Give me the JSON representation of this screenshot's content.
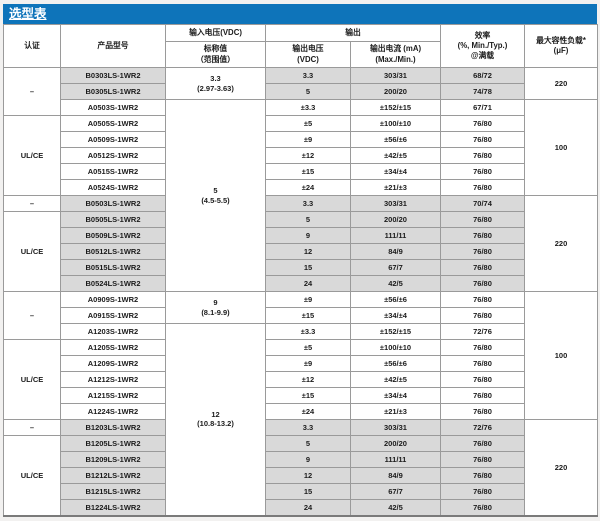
{
  "title": "选型表",
  "colors": {
    "accent_blue": "#0e74ba",
    "row_shade_gray": "#d9d9d9",
    "border_gray": "#9a9a9a",
    "title_text": "#ffffff"
  },
  "header": {
    "cert": "认证",
    "model": "产品型号",
    "input_group": "输入电压(VDC)",
    "input_sub_line1": "标称值",
    "input_sub_line2": "（范围值）",
    "output_group": "输出",
    "vout_line1": "输出电压",
    "vout_line2": "(VDC)",
    "iout_line1": "输出电流 (mA)",
    "iout_line2": "(Max./Min.)",
    "eff_line1": "效率",
    "eff_line2": "(%, Min./Typ.)",
    "eff_line3": "@满载",
    "cap_line1": "最大容性负载*",
    "cap_line2": "(μF)"
  },
  "rows": [
    {
      "model": "B0303LS-1WR2",
      "vout": "3.3",
      "iout": "303/31",
      "eff": "68/72",
      "shaded": true,
      "cert": {
        "label": "–",
        "span": 3
      },
      "input": {
        "lines": [
          "3.3",
          "(2.97-3.63)"
        ],
        "span": 2
      },
      "cap": {
        "label": "220",
        "span": 2
      }
    },
    {
      "model": "B0305LS-1WR2",
      "vout": "5",
      "iout": "200/20",
      "eff": "74/78",
      "shaded": true
    },
    {
      "model": "A0503S-1WR2",
      "vout": "±3.3",
      "iout": "±152/±15",
      "eff": "67/71",
      "shaded": false,
      "input": {
        "lines": [
          "5",
          "(4.5-5.5)"
        ],
        "span": 12
      },
      "cap": {
        "label": "100",
        "span": 6
      }
    },
    {
      "model": "A0505S-1WR2",
      "vout": "±5",
      "iout": "±100/±10",
      "eff": "76/80",
      "shaded": false,
      "cert": {
        "label": "UL/CE",
        "span": 5
      }
    },
    {
      "model": "A0509S-1WR2",
      "vout": "±9",
      "iout": "±56/±6",
      "eff": "76/80",
      "shaded": false
    },
    {
      "model": "A0512S-1WR2",
      "vout": "±12",
      "iout": "±42/±5",
      "eff": "76/80",
      "shaded": false
    },
    {
      "model": "A0515S-1WR2",
      "vout": "±15",
      "iout": "±34/±4",
      "eff": "76/80",
      "shaded": false
    },
    {
      "model": "A0524S-1WR2",
      "vout": "±24",
      "iout": "±21/±3",
      "eff": "76/80",
      "shaded": false
    },
    {
      "model": "B0503LS-1WR2",
      "vout": "3.3",
      "iout": "303/31",
      "eff": "70/74",
      "shaded": true,
      "cert": {
        "label": "–",
        "span": 1
      },
      "cap": {
        "label": "220",
        "span": 6
      }
    },
    {
      "model": "B0505LS-1WR2",
      "vout": "5",
      "iout": "200/20",
      "eff": "76/80",
      "shaded": true,
      "cert": {
        "label": "UL/CE",
        "span": 5
      }
    },
    {
      "model": "B0509LS-1WR2",
      "vout": "9",
      "iout": "111/11",
      "eff": "76/80",
      "shaded": true
    },
    {
      "model": "B0512LS-1WR2",
      "vout": "12",
      "iout": "84/9",
      "eff": "76/80",
      "shaded": true
    },
    {
      "model": "B0515LS-1WR2",
      "vout": "15",
      "iout": "67/7",
      "eff": "76/80",
      "shaded": true
    },
    {
      "model": "B0524LS-1WR2",
      "vout": "24",
      "iout": "42/5",
      "eff": "76/80",
      "shaded": true
    },
    {
      "model": "A0909S-1WR2",
      "vout": "±9",
      "iout": "±56/±6",
      "eff": "76/80",
      "shaded": false,
      "cert": {
        "label": "–",
        "span": 3
      },
      "input": {
        "lines": [
          "9",
          "(8.1-9.9)"
        ],
        "span": 2
      },
      "cap": {
        "label": "100",
        "span": 8
      }
    },
    {
      "model": "A0915S-1WR2",
      "vout": "±15",
      "iout": "±34/±4",
      "eff": "76/80",
      "shaded": false
    },
    {
      "model": "A1203S-1WR2",
      "vout": "±3.3",
      "iout": "±152/±15",
      "eff": "72/76",
      "shaded": false,
      "input": {
        "lines": [
          "12",
          "(10.8-13.2)"
        ],
        "span": 12
      }
    },
    {
      "model": "A1205S-1WR2",
      "vout": "±5",
      "iout": "±100/±10",
      "eff": "76/80",
      "shaded": false,
      "cert": {
        "label": "UL/CE",
        "span": 5
      }
    },
    {
      "model": "A1209S-1WR2",
      "vout": "±9",
      "iout": "±56/±6",
      "eff": "76/80",
      "shaded": false
    },
    {
      "model": "A1212S-1WR2",
      "vout": "±12",
      "iout": "±42/±5",
      "eff": "76/80",
      "shaded": false
    },
    {
      "model": "A1215S-1WR2",
      "vout": "±15",
      "iout": "±34/±4",
      "eff": "76/80",
      "shaded": false
    },
    {
      "model": "A1224S-1WR2",
      "vout": "±24",
      "iout": "±21/±3",
      "eff": "76/80",
      "shaded": false
    },
    {
      "model": "B1203LS-1WR2",
      "vout": "3.3",
      "iout": "303/31",
      "eff": "72/76",
      "shaded": true,
      "cert": {
        "label": "–",
        "span": 1
      },
      "cap": {
        "label": "220",
        "span": 6
      }
    },
    {
      "model": "B1205LS-1WR2",
      "vout": "5",
      "iout": "200/20",
      "eff": "76/80",
      "shaded": true,
      "cert": {
        "label": "UL/CE",
        "span": 5
      }
    },
    {
      "model": "B1209LS-1WR2",
      "vout": "9",
      "iout": "111/11",
      "eff": "76/80",
      "shaded": true
    },
    {
      "model": "B1212LS-1WR2",
      "vout": "12",
      "iout": "84/9",
      "eff": "76/80",
      "shaded": true
    },
    {
      "model": "B1215LS-1WR2",
      "vout": "15",
      "iout": "67/7",
      "eff": "76/80",
      "shaded": true
    },
    {
      "model": "B1224LS-1WR2",
      "vout": "24",
      "iout": "42/5",
      "eff": "76/80",
      "shaded": true
    }
  ]
}
